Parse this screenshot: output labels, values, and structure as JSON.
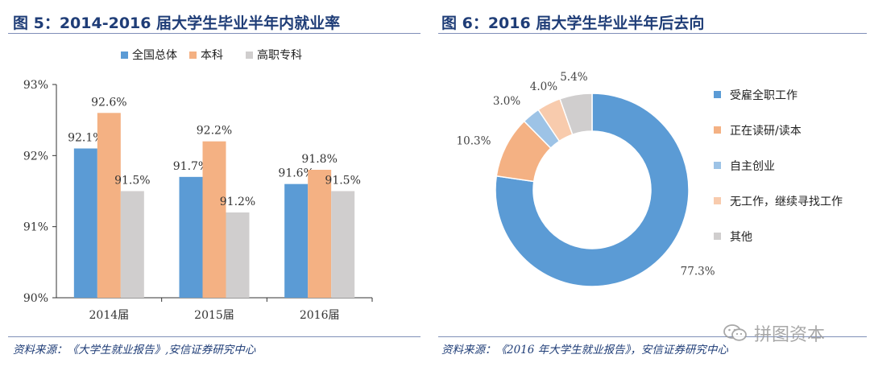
{
  "figures": {
    "left": {
      "title": "图 5：2014-2016 届大学生毕业半年内就业率",
      "source": "资料来源：《大学生就业报告》,安信证券研究中心"
    },
    "right": {
      "title": "图 6：2016 届大学生毕业半年后去向",
      "source": "资料来源：《2016 年大学生就业报告》，安信证券研究中心"
    }
  },
  "watermark": {
    "text": "拼图资本"
  },
  "chart_data": [
    {
      "type": "bar",
      "title": "",
      "categories": [
        "2014届",
        "2015届",
        "2016届"
      ],
      "series": [
        {
          "name": "全国总体",
          "color": "#5b9bd5",
          "values": [
            92.1,
            91.7,
            91.6
          ],
          "labels": [
            "92.1%",
            "91.7%",
            "91.6%"
          ]
        },
        {
          "name": "本科",
          "color": "#f4b183",
          "values": [
            92.6,
            92.2,
            91.8
          ],
          "labels": [
            "92.6%",
            "92.2%",
            "91.8%"
          ]
        },
        {
          "name": "高职专科",
          "color": "#d0cece",
          "values": [
            91.5,
            91.2,
            91.5
          ],
          "labels": [
            "91.5%",
            "91.2%",
            "91.5%"
          ]
        }
      ],
      "ylim": [
        90,
        93
      ],
      "yticks": [
        90,
        91,
        92,
        93
      ],
      "ytick_labels": [
        "90%",
        "91%",
        "92%",
        "93%"
      ],
      "xlabel": "",
      "ylabel": "",
      "legend": "top-center",
      "grid": false
    },
    {
      "type": "pie",
      "variant": "donut",
      "slices": [
        {
          "name": "受雇全职工作",
          "value": 77.3,
          "label": "77.3%",
          "color": "#5b9bd5"
        },
        {
          "name": "正在读研/读本",
          "value": 10.3,
          "label": "10.3%",
          "color": "#f4b183"
        },
        {
          "name": "自主创业",
          "value": 3.0,
          "label": "3.0%",
          "color": "#9dc3e6"
        },
        {
          "name": "无工作，继续寻找工作",
          "value": 4.0,
          "label": "4.0%",
          "color": "#f8cbad"
        },
        {
          "name": "其他",
          "value": 5.4,
          "label": "5.4%",
          "color": "#d0cece"
        }
      ],
      "legend": "right"
    }
  ]
}
